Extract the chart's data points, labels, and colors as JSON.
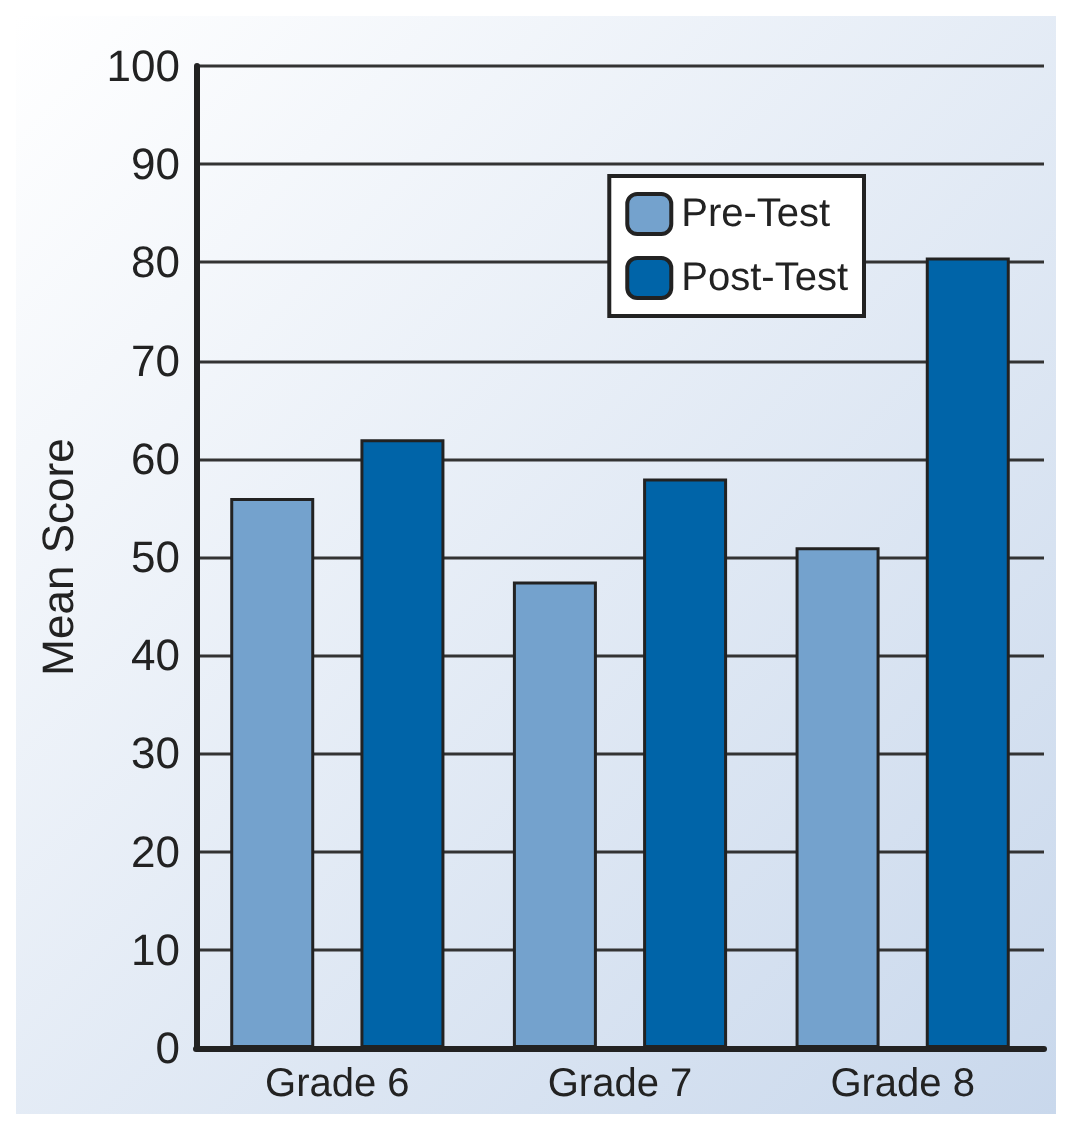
{
  "chart_data": {
    "type": "bar",
    "ylabel": "Mean Score",
    "categories": [
      "Grade 6",
      "Grade 7",
      "Grade 8"
    ],
    "series": [
      {
        "name": "Pre-Test",
        "color": "#74a2cd",
        "values": [
          56,
          47.5,
          51
        ]
      },
      {
        "name": "Post-Test",
        "color": "#0064a8",
        "values": [
          62,
          58,
          80.5
        ]
      }
    ],
    "ylim": [
      0,
      100
    ],
    "yticks": [
      0,
      10,
      20,
      30,
      40,
      50,
      60,
      70,
      80,
      90,
      100
    ],
    "grid": "y",
    "legend": "top right"
  }
}
